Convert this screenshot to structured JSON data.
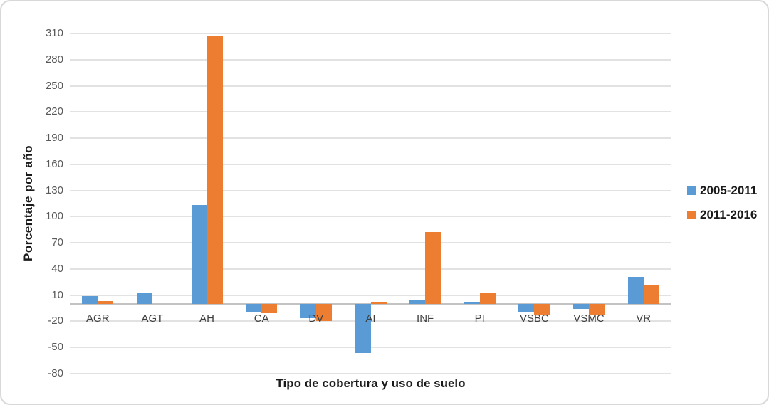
{
  "chart_data": {
    "type": "bar",
    "title": "",
    "xlabel": "Tipo de cobertura y uso de suelo",
    "ylabel": "Porcentaje por año",
    "categories": [
      "AGR",
      "AGT",
      "AH",
      "CA",
      "DV",
      "AI",
      "INF",
      "PI",
      "VSBC",
      "VSMC",
      "VR"
    ],
    "series": [
      {
        "name": "2005-2011",
        "color": "#5B9BD5",
        "values": [
          9,
          12,
          113,
          -9,
          -16,
          -56,
          5,
          2,
          -9,
          -6,
          31
        ]
      },
      {
        "name": "2011-2016",
        "color": "#ED7D31",
        "values": [
          3,
          0,
          307,
          -11,
          -20,
          2,
          82,
          13,
          -13,
          -12,
          21
        ]
      }
    ],
    "ylim": [
      -80,
      310
    ],
    "yticks": [
      310,
      280,
      250,
      220,
      190,
      160,
      130,
      100,
      70,
      40,
      10,
      -20,
      -50,
      -80
    ],
    "grid": true,
    "legend_position": "right"
  },
  "colors": {
    "series_blue": "#5B9BD5",
    "series_orange": "#ED7D31",
    "gridline": "#e2e2e2",
    "axis_line": "#c3c3c3",
    "tick_text": "#595959",
    "category_text": "#3f3f3f",
    "title_text": "#1a1a1a"
  }
}
